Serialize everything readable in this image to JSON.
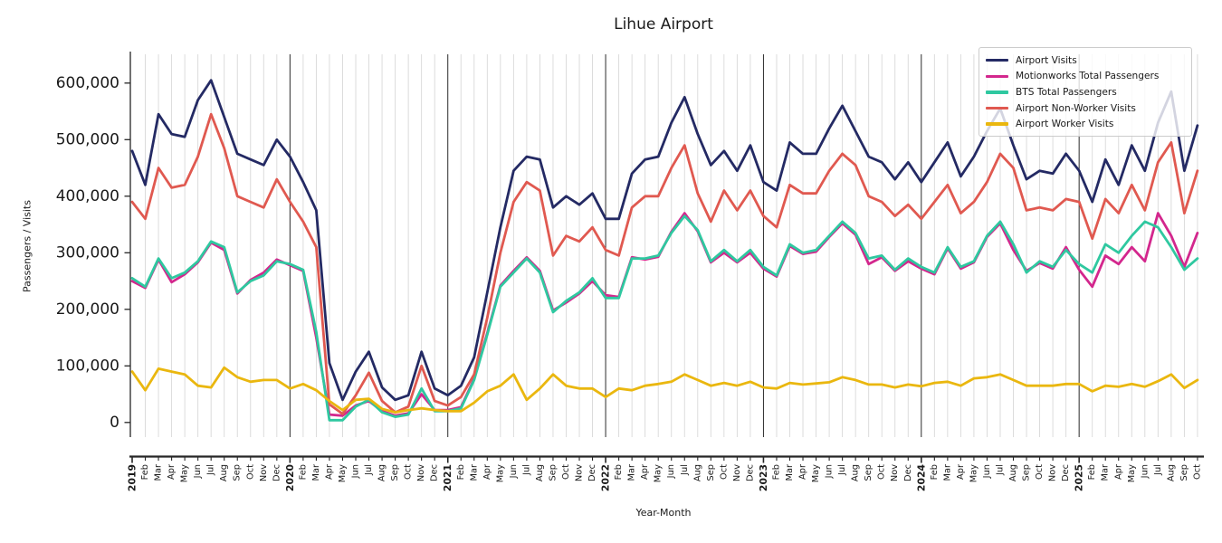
{
  "chart_data": {
    "type": "line",
    "title": "Lihue Airport",
    "xlabel": "Year-Month",
    "ylabel": "Passengers / Visits",
    "x_labels": [
      "2019",
      "Feb",
      "Mar",
      "Apr",
      "May",
      "Jun",
      "Jul",
      "Aug",
      "Sep",
      "Oct",
      "Nov",
      "Dec",
      "2020",
      "Feb",
      "Mar",
      "Apr",
      "May",
      "Jun",
      "Jul",
      "Aug",
      "Sep",
      "Oct",
      "Nov",
      "Dec",
      "2021",
      "Feb",
      "Mar",
      "Apr",
      "May",
      "Jun",
      "Jul",
      "Aug",
      "Sep",
      "Oct",
      "Nov",
      "Dec",
      "2022",
      "Feb",
      "Mar",
      "Apr",
      "May",
      "Jun",
      "Jul",
      "Aug",
      "Sep",
      "Oct",
      "Nov",
      "Dec",
      "2023",
      "Feb",
      "Mar",
      "Apr",
      "May",
      "Jun",
      "Jul",
      "Aug",
      "Sep",
      "Oct",
      "Nov",
      "Dec",
      "2024",
      "Feb",
      "Mar",
      "Apr",
      "May",
      "Jun",
      "Jul",
      "Aug",
      "Sep",
      "Oct",
      "Nov",
      "Dec",
      "2025",
      "Feb",
      "Mar",
      "Apr",
      "May",
      "Jun",
      "Jul",
      "Aug",
      "Sep",
      "Oct"
    ],
    "value_unit": 1000,
    "ylim": [
      0,
      650000
    ],
    "ytick_values": [
      0,
      100000,
      200000,
      300000,
      400000,
      500000,
      600000
    ],
    "ytick_labels": [
      "0",
      "100,000",
      "200,000",
      "300,000",
      "400,000",
      "500,000",
      "600,000"
    ],
    "grid": {
      "vertical_monthly": true,
      "year_boundary_lines": true,
      "horizontal": false
    },
    "legend_position": "upper right",
    "series": [
      {
        "name": "Airport Visits",
        "color": "#242a64",
        "values_k": [
          480,
          420,
          545,
          510,
          505,
          570,
          605,
          540,
          475,
          465,
          455,
          500,
          470,
          425,
          375,
          105,
          40,
          90,
          125,
          62,
          40,
          48,
          125,
          60,
          48,
          65,
          115,
          230,
          345,
          445,
          470,
          465,
          380,
          400,
          385,
          405,
          360,
          360,
          440,
          465,
          470,
          530,
          575,
          510,
          455,
          480,
          445,
          490,
          425,
          410,
          495,
          475,
          475,
          520,
          560,
          515,
          470,
          460,
          430,
          460,
          425,
          460,
          495,
          435,
          470,
          515,
          555,
          490,
          430,
          445,
          440,
          475,
          445,
          390,
          465,
          420,
          490,
          445,
          530,
          585,
          445,
          525
        ]
      },
      {
        "name": "Motionworks Total Passengers",
        "color": "#d3278d",
        "values_k": [
          250,
          238,
          288,
          248,
          262,
          283,
          318,
          305,
          228,
          252,
          265,
          288,
          278,
          268,
          150,
          14,
          12,
          30,
          38,
          20,
          12,
          16,
          50,
          22,
          22,
          27,
          77,
          158,
          242,
          268,
          292,
          268,
          198,
          212,
          228,
          250,
          225,
          222,
          292,
          288,
          293,
          337,
          370,
          338,
          283,
          300,
          283,
          300,
          272,
          258,
          312,
          298,
          302,
          328,
          352,
          332,
          280,
          292,
          268,
          285,
          272,
          262,
          308,
          272,
          283,
          328,
          352,
          305,
          268,
          282,
          272,
          310,
          270,
          240,
          295,
          280,
          310,
          285,
          370,
          330,
          275,
          335
        ]
      },
      {
        "name": "BTS Total Passengers",
        "color": "#2fc8a0",
        "values_k": [
          255,
          240,
          290,
          255,
          265,
          285,
          320,
          310,
          230,
          250,
          260,
          285,
          280,
          270,
          160,
          4,
          4,
          28,
          40,
          18,
          10,
          14,
          60,
          20,
          20,
          25,
          75,
          155,
          240,
          265,
          290,
          265,
          195,
          215,
          230,
          255,
          220,
          220,
          290,
          290,
          295,
          335,
          365,
          340,
          285,
          305,
          285,
          305,
          275,
          260,
          315,
          300,
          305,
          330,
          355,
          335,
          290,
          295,
          270,
          290,
          275,
          265,
          310,
          275,
          285,
          330,
          355,
          315,
          265,
          285,
          275,
          305,
          280,
          265,
          315,
          300,
          330,
          355,
          345,
          310,
          270,
          290
        ]
      },
      {
        "name": "Airport Non-Worker Visits",
        "color": "#e05950",
        "values_k": [
          390,
          360,
          450,
          415,
          420,
          470,
          545,
          485,
          400,
          390,
          380,
          430,
          390,
          355,
          310,
          32,
          15,
          48,
          88,
          38,
          18,
          28,
          100,
          38,
          30,
          45,
          85,
          185,
          300,
          390,
          425,
          410,
          295,
          330,
          320,
          345,
          305,
          295,
          380,
          400,
          400,
          450,
          490,
          405,
          355,
          410,
          375,
          410,
          365,
          345,
          420,
          405,
          405,
          445,
          475,
          455,
          400,
          390,
          365,
          385,
          360,
          390,
          420,
          370,
          390,
          425,
          475,
          450,
          375,
          380,
          375,
          395,
          390,
          325,
          395,
          370,
          420,
          375,
          460,
          495,
          370,
          445
        ]
      },
      {
        "name": "Airport Worker Visits",
        "color": "#eab70f",
        "values_k": [
          90,
          57,
          95,
          90,
          85,
          65,
          62,
          97,
          80,
          72,
          75,
          75,
          60,
          68,
          57,
          38,
          22,
          40,
          42,
          24,
          18,
          22,
          25,
          22,
          20,
          20,
          35,
          55,
          65,
          85,
          40,
          60,
          85,
          65,
          60,
          60,
          45,
          60,
          57,
          65,
          68,
          72,
          85,
          75,
          65,
          70,
          65,
          72,
          62,
          60,
          70,
          67,
          69,
          71,
          80,
          75,
          67,
          67,
          62,
          67,
          64,
          70,
          72,
          65,
          78,
          80,
          85,
          75,
          65,
          65,
          65,
          68,
          68,
          55,
          65,
          63,
          68,
          63,
          73,
          85,
          61,
          75
        ]
      }
    ],
    "style_colors": {
      "month_gridline": "#d8d8d8",
      "year_gridline": "#2b2b2b",
      "spine": "#262626",
      "text": "#1a1a1a",
      "legend_border": "#cccccc"
    }
  }
}
